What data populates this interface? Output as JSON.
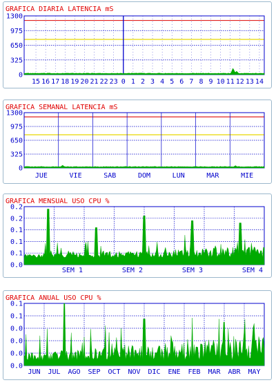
{
  "colors": {
    "title": "#e00000",
    "axis_label": "#0000cc",
    "grid": "#0000cc",
    "data": "#00aa00",
    "threshold_high": "#e02020",
    "threshold_mid": "#e8d800",
    "panel_border": "#9cb8cc"
  },
  "chart_data": [
    {
      "type": "area",
      "title": "GRAFICA DIARIA LATENCIA mS",
      "yticks": [
        "1300",
        "975",
        "650",
        "325",
        "0"
      ],
      "ylim": [
        0,
        1300
      ],
      "xticks": [
        "15",
        "16",
        "17",
        "18",
        "19",
        "20",
        "21",
        "22",
        "23",
        "0",
        "1",
        "2",
        "3",
        "4",
        "5",
        "6",
        "7",
        "8",
        "9",
        "10",
        "11",
        "12",
        "13",
        "14"
      ],
      "thresholds": [
        1200,
        780
      ],
      "marker_tick": "0",
      "series": [
        {
          "baseline": 30,
          "spikes": [
            {
              "x": 0.87,
              "value": 150
            },
            {
              "x": 0.885,
              "value": 80
            }
          ]
        }
      ],
      "grid": true
    },
    {
      "type": "area",
      "title": "GRAFICA SEMANAL LATENCIA mS",
      "yticks": [
        "1300",
        "975",
        "650",
        "325",
        "0"
      ],
      "ylim": [
        0,
        1300
      ],
      "xticks": [
        "JUE",
        "VIE",
        "SAB",
        "DOM",
        "LUN",
        "MAR",
        "MIE"
      ],
      "thresholds": [
        1200,
        780
      ],
      "series": [
        {
          "baseline": 30,
          "spikes": [
            {
              "x": 0.16,
              "value": 70
            },
            {
              "x": 0.88,
              "value": 60
            }
          ]
        }
      ],
      "grid": true
    },
    {
      "type": "area",
      "title": "GRAFICA MENSUAL USO CPU %",
      "yticks": [
        "0.2",
        "0.2",
        "0.1",
        "0.1",
        "0.1",
        "0.0"
      ],
      "ylim": [
        0,
        0.25
      ],
      "xticks": [
        "SEM 1",
        "SEM 2",
        "SEM 3",
        "SEM 4"
      ],
      "series": [
        {
          "baseline": 0.03,
          "noise": 0.05,
          "peaks": [
            0.24,
            0.16,
            0.21,
            0.19,
            0.18
          ]
        }
      ],
      "grid": true
    },
    {
      "type": "area",
      "title": "GRAFICA ANUAL USO CPU %",
      "yticks": [
        "0.1",
        "0.1",
        "0.0",
        "0.0",
        "0.0",
        "0.0"
      ],
      "ylim": [
        0,
        0.1
      ],
      "xticks": [
        "JUN",
        "JUL",
        "AGO",
        "SEP",
        "OCT",
        "NOV",
        "DIC",
        "ENE",
        "FEB",
        "MAR",
        "ABR",
        "MAY"
      ],
      "series": [
        {
          "baseline": 0.008,
          "noise": 0.04,
          "peaks": [
            0.1,
            0.075,
            0.07
          ]
        }
      ],
      "grid": true
    }
  ]
}
